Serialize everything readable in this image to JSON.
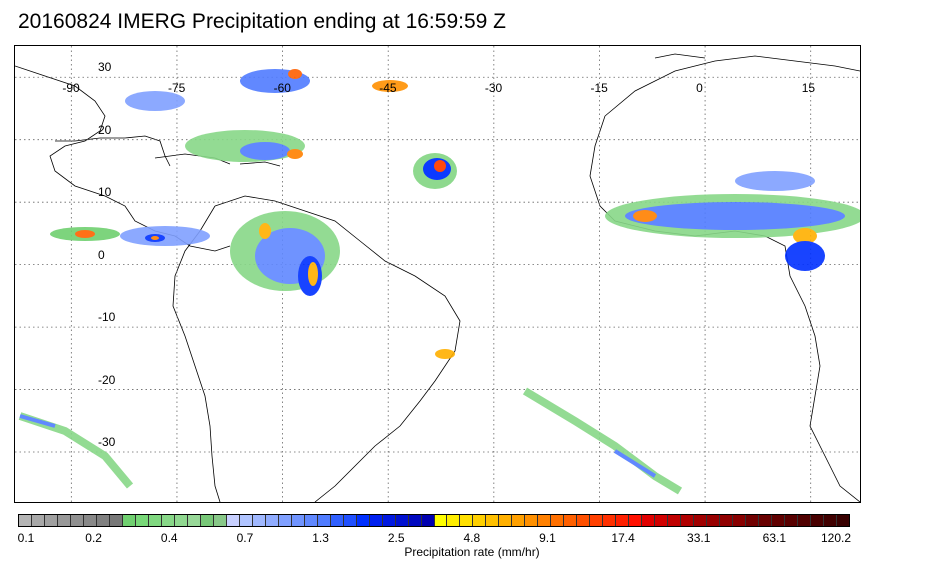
{
  "title": "20160824 IMERG Precipitation ending at 16:59:59 Z",
  "map": {
    "lon_range": [
      -98,
      22
    ],
    "lat_range": [
      -38,
      35
    ],
    "lon_ticks": [
      -90,
      -75,
      -60,
      -45,
      -30,
      -15,
      0,
      15
    ],
    "lon_tick_labels": [
      "-90",
      "-75",
      "-60",
      "-45",
      "-30",
      "-15",
      "0",
      "15"
    ],
    "lat_ticks": [
      30,
      20,
      10,
      0,
      -10,
      -20,
      -30
    ],
    "lat_tick_labels": [
      "30",
      "20",
      "10",
      "0",
      "-10",
      "-20",
      "-30"
    ],
    "gridlines": "dotted"
  },
  "colorbar": {
    "label": "Precipitation rate (mm/hr)",
    "tick_labels": [
      "0.1",
      "0.2",
      "0.4",
      "0.7",
      "1.3",
      "2.5",
      "4.8",
      "9.1",
      "17.4",
      "33.1",
      "63.1",
      "120.2"
    ],
    "colors": [
      "#b4b4b4",
      "#a8a8a8",
      "#a0a0a0",
      "#989898",
      "#909090",
      "#888888",
      "#808080",
      "#787878",
      "#70d070",
      "#78d878",
      "#80d880",
      "#88d888",
      "#90d890",
      "#98d898",
      "#78c878",
      "#88c888",
      "#c8d0ff",
      "#b0c4ff",
      "#a0b8ff",
      "#90acff",
      "#80a0ff",
      "#7094ff",
      "#6088ff",
      "#507cff",
      "#3060ff",
      "#2050ff",
      "#0030ff",
      "#0020f0",
      "#0018e0",
      "#0010d0",
      "#0008c0",
      "#0000b0",
      "#ffff00",
      "#ffee00",
      "#ffe000",
      "#ffd000",
      "#ffc000",
      "#ffb000",
      "#ffa000",
      "#ff9000",
      "#ff8000",
      "#ff7000",
      "#ff6000",
      "#ff5000",
      "#ff4000",
      "#ff3000",
      "#ff2000",
      "#ff1000",
      "#e00000",
      "#d00000",
      "#c00000",
      "#b00000",
      "#a00000",
      "#980000",
      "#900000",
      "#880000",
      "#700000",
      "#680000",
      "#600000",
      "#580000",
      "#500000",
      "#480000",
      "#400000",
      "#380000"
    ]
  }
}
